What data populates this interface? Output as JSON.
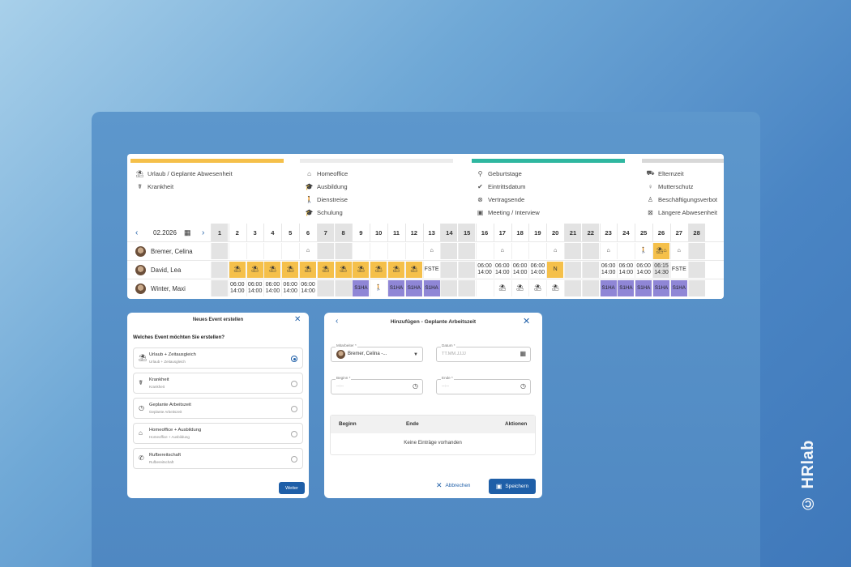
{
  "watermark": "© HRlab",
  "colors": {
    "vacation": "#f5c04a",
    "purple": "#8f86d6",
    "teal": "#2fb7a0",
    "accent": "#1f5fa8"
  },
  "legend": {
    "col1": [
      {
        "icon": "beach-icon",
        "glyph": "⛱",
        "label": "Urlaub / Geplante Abwesenheit"
      },
      {
        "icon": "sick-icon",
        "glyph": "☤",
        "label": "Krankheit"
      }
    ],
    "col2": [
      {
        "icon": "home-icon",
        "glyph": "⌂",
        "label": "Homeoffice"
      },
      {
        "icon": "graduation-icon",
        "glyph": "🎓",
        "label": "Ausbildung"
      },
      {
        "icon": "walk-icon",
        "glyph": "🚶",
        "label": "Dienstreise"
      },
      {
        "icon": "school-icon",
        "glyph": "🎓",
        "label": "Schulung"
      }
    ],
    "col3": [
      {
        "icon": "pin-icon",
        "glyph": "⚲",
        "label": "Geburtstage"
      },
      {
        "icon": "check-circle-icon",
        "glyph": "✔",
        "label": "Eintrittsdatum"
      },
      {
        "icon": "cancel-circle-icon",
        "glyph": "⊗",
        "label": "Vertragsende"
      },
      {
        "icon": "calendar-31-icon",
        "glyph": "▣",
        "label": "Meeting / Interview"
      }
    ],
    "col4": [
      {
        "icon": "stroller-icon",
        "glyph": "⛟",
        "label": "Elternzeit"
      },
      {
        "icon": "pregnant-icon",
        "glyph": "♀",
        "label": "Mutterschutz"
      },
      {
        "icon": "person-icon",
        "glyph": "♙",
        "label": "Beschäftigungsverbot"
      },
      {
        "icon": "absence-icon",
        "glyph": "⊠",
        "label": "Längere Abwesenheit"
      }
    ]
  },
  "calendar": {
    "month": "02.2026",
    "days": [
      "1",
      "2",
      "3",
      "4",
      "5",
      "6",
      "7",
      "8",
      "9",
      "10",
      "11",
      "12",
      "13",
      "14",
      "15",
      "16",
      "17",
      "18",
      "19",
      "20",
      "21",
      "22",
      "23",
      "24",
      "25",
      "26",
      "27",
      "28"
    ],
    "weekend_days": [
      1,
      7,
      8,
      14,
      15,
      21,
      22,
      28
    ],
    "employees": [
      {
        "name": "Bremer, Celina",
        "cells": {
          "6": {
            "t": "home",
            "v": "⌂"
          },
          "13": {
            "t": "home",
            "v": "⌂"
          },
          "17": {
            "t": "home",
            "v": "⌂"
          },
          "20": {
            "t": "home",
            "v": "⌂"
          },
          "23": {
            "t": "home",
            "v": "⌂"
          },
          "25": {
            "t": "walk",
            "v": "🚶"
          },
          "26": {
            "t": "vac",
            "v": "⛱⌂"
          },
          "27": {
            "t": "home",
            "v": "⌂"
          }
        }
      },
      {
        "name": "David, Lea",
        "cells": {
          "2": {
            "t": "vac",
            "v": "⛱"
          },
          "3": {
            "t": "vac",
            "v": "⛱"
          },
          "4": {
            "t": "vac",
            "v": "⛱"
          },
          "5": {
            "t": "vac",
            "v": "⛱"
          },
          "6": {
            "t": "vac",
            "v": "⛱"
          },
          "7": {
            "t": "vac",
            "v": "⛱"
          },
          "8": {
            "t": "vac",
            "v": "⛱"
          },
          "9": {
            "t": "vac",
            "v": "⛱"
          },
          "10": {
            "t": "vac",
            "v": "⛱"
          },
          "11": {
            "t": "vac",
            "v": "⛱"
          },
          "12": {
            "t": "vac",
            "v": "⛱"
          },
          "13": {
            "t": "text",
            "v": "FSTE"
          },
          "16": {
            "t": "time",
            "v": "06:00 14:00"
          },
          "17": {
            "t": "time",
            "v": "06:00 14:00"
          },
          "18": {
            "t": "time",
            "v": "06:00 14:00"
          },
          "19": {
            "t": "time",
            "v": "06:00 14:00"
          },
          "20": {
            "t": "vac",
            "v": "N"
          },
          "23": {
            "t": "time",
            "v": "06:00 14:00"
          },
          "24": {
            "t": "time",
            "v": "06:00 14:00"
          },
          "25": {
            "t": "time",
            "v": "06:00 14:00"
          },
          "26": {
            "t": "gray",
            "v": "06:15 14:30"
          },
          "27": {
            "t": "text",
            "v": "FSTE"
          }
        }
      },
      {
        "name": "Winter, Maxi",
        "cells": {
          "2": {
            "t": "time",
            "v": "06:00 14:00"
          },
          "3": {
            "t": "time",
            "v": "06:00 14:00"
          },
          "4": {
            "t": "time",
            "v": "06:00 14:00"
          },
          "5": {
            "t": "time",
            "v": "06:00 14:00"
          },
          "6": {
            "t": "time",
            "v": "06:00 14:00"
          },
          "9": {
            "t": "pur",
            "v": "S1HA"
          },
          "10": {
            "t": "walk",
            "v": "🚶"
          },
          "11": {
            "t": "pur",
            "v": "S1HA"
          },
          "12": {
            "t": "pur",
            "v": "S1HA"
          },
          "13": {
            "t": "pur",
            "v": "S1HA"
          },
          "17": {
            "t": "beach",
            "v": "⛱"
          },
          "18": {
            "t": "beach",
            "v": "⛱"
          },
          "19": {
            "t": "beach",
            "v": "⛱"
          },
          "20": {
            "t": "beach",
            "v": "⛱"
          },
          "23": {
            "t": "pur",
            "v": "S1HA"
          },
          "24": {
            "t": "pur",
            "v": "S1HA"
          },
          "25": {
            "t": "pur",
            "v": "S1HA"
          },
          "26": {
            "t": "pur",
            "v": "S1HA"
          },
          "27": {
            "t": "pur",
            "v": "S1HA"
          }
        }
      }
    ]
  },
  "dialog1": {
    "title": "Neues Event erstellen",
    "question": "Welches Event möchten Sie erstellen?",
    "options": [
      {
        "icon": "beach-icon",
        "glyph": "⛱",
        "title": "Urlaub + Zeitausgleich",
        "sub": "Urlaub + Zeitausgleich",
        "selected": true
      },
      {
        "icon": "sick-icon",
        "glyph": "☤",
        "title": "Krankheit",
        "sub": "Krankheit",
        "selected": false
      },
      {
        "icon": "clock-icon",
        "glyph": "◷",
        "title": "Geplante Arbeitszeit",
        "sub": "Geplante Arbeitszeit",
        "selected": false
      },
      {
        "icon": "home-icon",
        "glyph": "⌂",
        "title": "Homeoffice + Ausbildung",
        "sub": "Homeoffice + Ausbildung",
        "selected": false
      },
      {
        "icon": "phone-icon",
        "glyph": "✆",
        "title": "Rufbereitschaft",
        "sub": "Rufbereitschaft",
        "selected": false
      }
    ],
    "next_label": "Weiter"
  },
  "dialog2": {
    "title": "Hinzufügen - Geplante Arbeitszeit",
    "employee_label": "Mitarbeiter *",
    "employee_value": "Bremer, Celina -...",
    "date_label": "Datum *",
    "date_placeholder": "TT.MM.JJJJ",
    "start_label": "Beginn *",
    "end_label": "Ende *",
    "time_placeholder": "--:--",
    "table_headers": {
      "begin": "Beginn",
      "end": "Ende",
      "actions": "Aktionen"
    },
    "empty_text": "Keine Einträge vorhanden",
    "cancel_label": "Abbrechen",
    "save_label": "Speichern"
  }
}
